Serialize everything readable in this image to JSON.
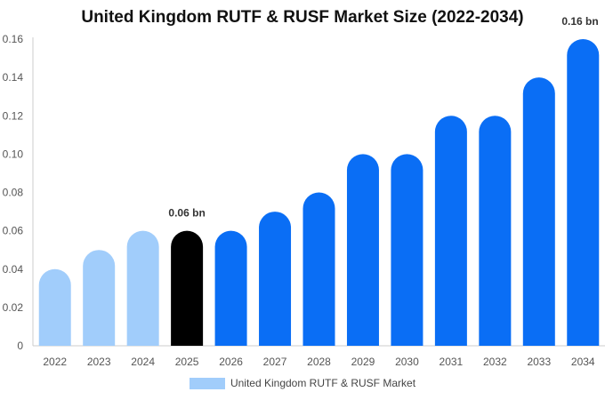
{
  "chart_data": {
    "type": "bar",
    "title": "United Kingdom RUTF & RUSF Market Size (2022-2034)",
    "categories": [
      "2022",
      "2023",
      "2024",
      "2025",
      "2026",
      "2027",
      "2028",
      "2029",
      "2030",
      "2031",
      "2032",
      "2033",
      "2034"
    ],
    "series": [
      {
        "name": "United Kingdom RUTF & RUSF Market",
        "values": [
          0.04,
          0.05,
          0.06,
          0.06,
          0.06,
          0.07,
          0.08,
          0.1,
          0.1,
          0.12,
          0.12,
          0.14,
          0.16
        ]
      }
    ],
    "y_ticks": [
      "0",
      "0.02",
      "0.04",
      "0.06",
      "0.08",
      "0.10",
      "0.12",
      "0.14",
      "0.16"
    ],
    "ylim": [
      0,
      0.16
    ],
    "xlabel": "",
    "ylabel": "",
    "grid": false,
    "legend_position": "bottom",
    "data_labels": [
      {
        "category": "2025",
        "text": "0.06 bn"
      },
      {
        "category": "2034",
        "text": "0.16 bn"
      }
    ],
    "colors": {
      "historical": "#a1cdfb",
      "current": "#000000",
      "forecast": "#0a6ef5",
      "legend": "#a1cdfb",
      "axis": "#cccccc"
    },
    "bar_groups": {
      "historical": [
        "2022",
        "2023",
        "2024"
      ],
      "current": [
        "2025"
      ],
      "forecast": [
        "2026",
        "2027",
        "2028",
        "2029",
        "2030",
        "2031",
        "2032",
        "2033",
        "2034"
      ]
    }
  }
}
